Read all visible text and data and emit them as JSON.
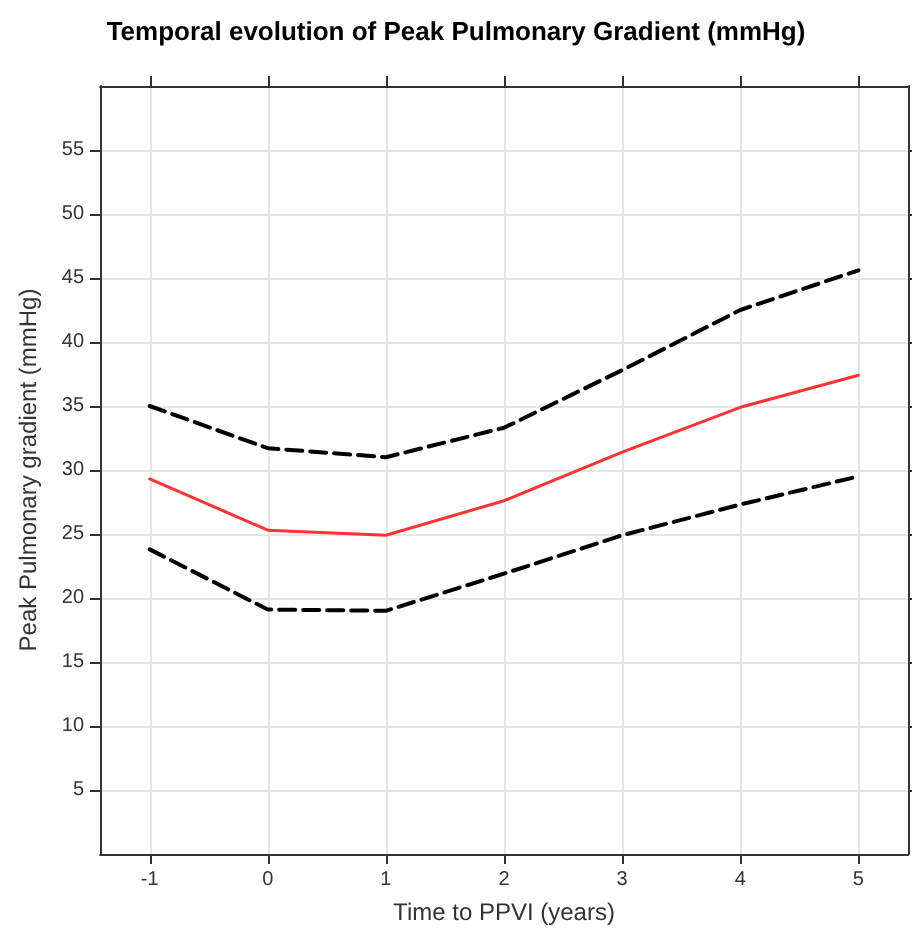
{
  "chart_data": {
    "type": "line",
    "title": "Temporal evolution of Peak Pulmonary Gradient (mmHg)",
    "xlabel": "Time to PPVI (years)",
    "ylabel": "Peak Pulmonary gradient (mmHg)",
    "x": [
      -1,
      0,
      1,
      2,
      3,
      4,
      5
    ],
    "series": [
      {
        "color": "#000000",
        "line_style": "dashed",
        "values": [
          35.0,
          31.7,
          31.0,
          33.3,
          37.8,
          42.5,
          45.6
        ]
      },
      {
        "color": "#ff3333",
        "line_style": "solid",
        "values": [
          29.3,
          25.3,
          24.9,
          27.6,
          31.4,
          34.9,
          37.4
        ]
      },
      {
        "color": "#000000",
        "line_style": "dashed",
        "values": [
          23.8,
          19.1,
          19.0,
          21.9,
          24.9,
          27.3,
          29.5
        ]
      }
    ],
    "xlim": [
      -1.42,
      5.42
    ],
    "xticks": [
      -1,
      0,
      1,
      2,
      3,
      4,
      5
    ],
    "ylim": [
      0,
      60
    ],
    "yticks": [
      5,
      10,
      15,
      20,
      25,
      30,
      35,
      40,
      45,
      50,
      55
    ],
    "grid": true,
    "marker": "none"
  }
}
